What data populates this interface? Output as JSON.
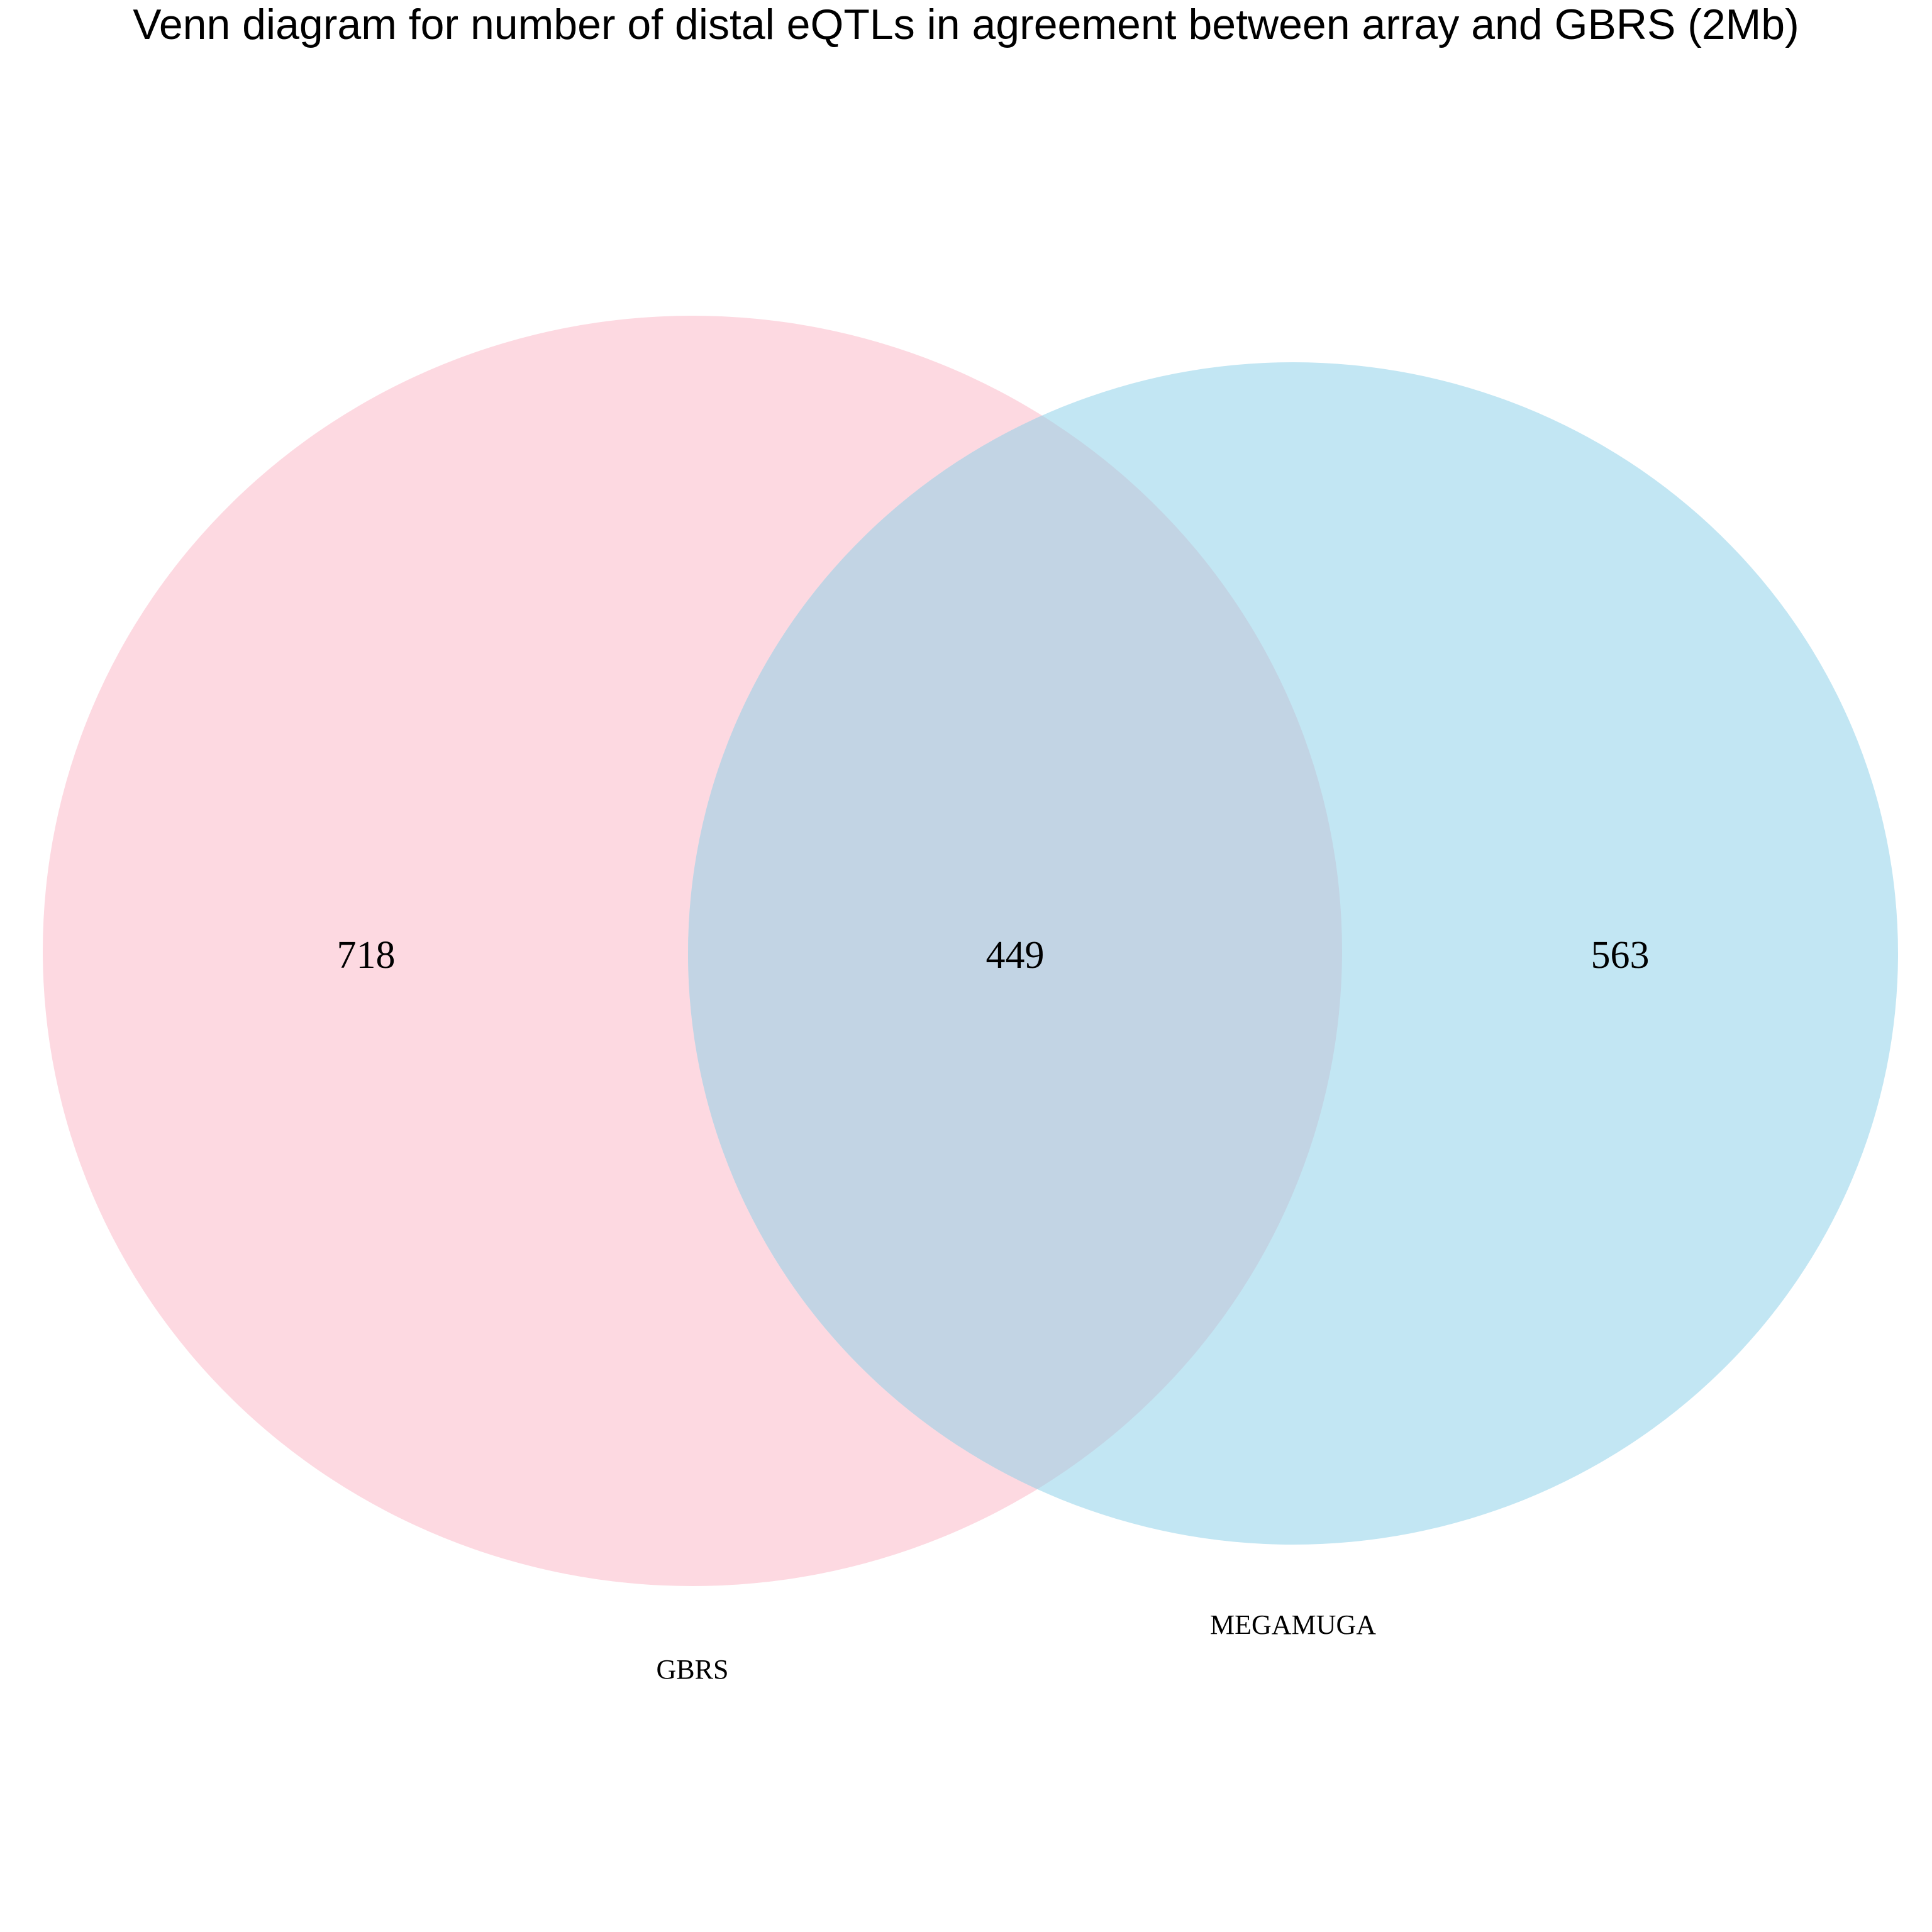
{
  "title": "Venn diagram for number of distal eQTLs in agreement between array and GBRS (2Mb)",
  "sets": [
    {
      "name": "GBRS",
      "only_count": "718",
      "color": "#fdd9e1"
    },
    {
      "name": "MEGAMUGA",
      "only_count": "563",
      "color": "#c2e6f3"
    }
  ],
  "intersection": {
    "count": "449",
    "color": "#c2d4e4"
  }
}
